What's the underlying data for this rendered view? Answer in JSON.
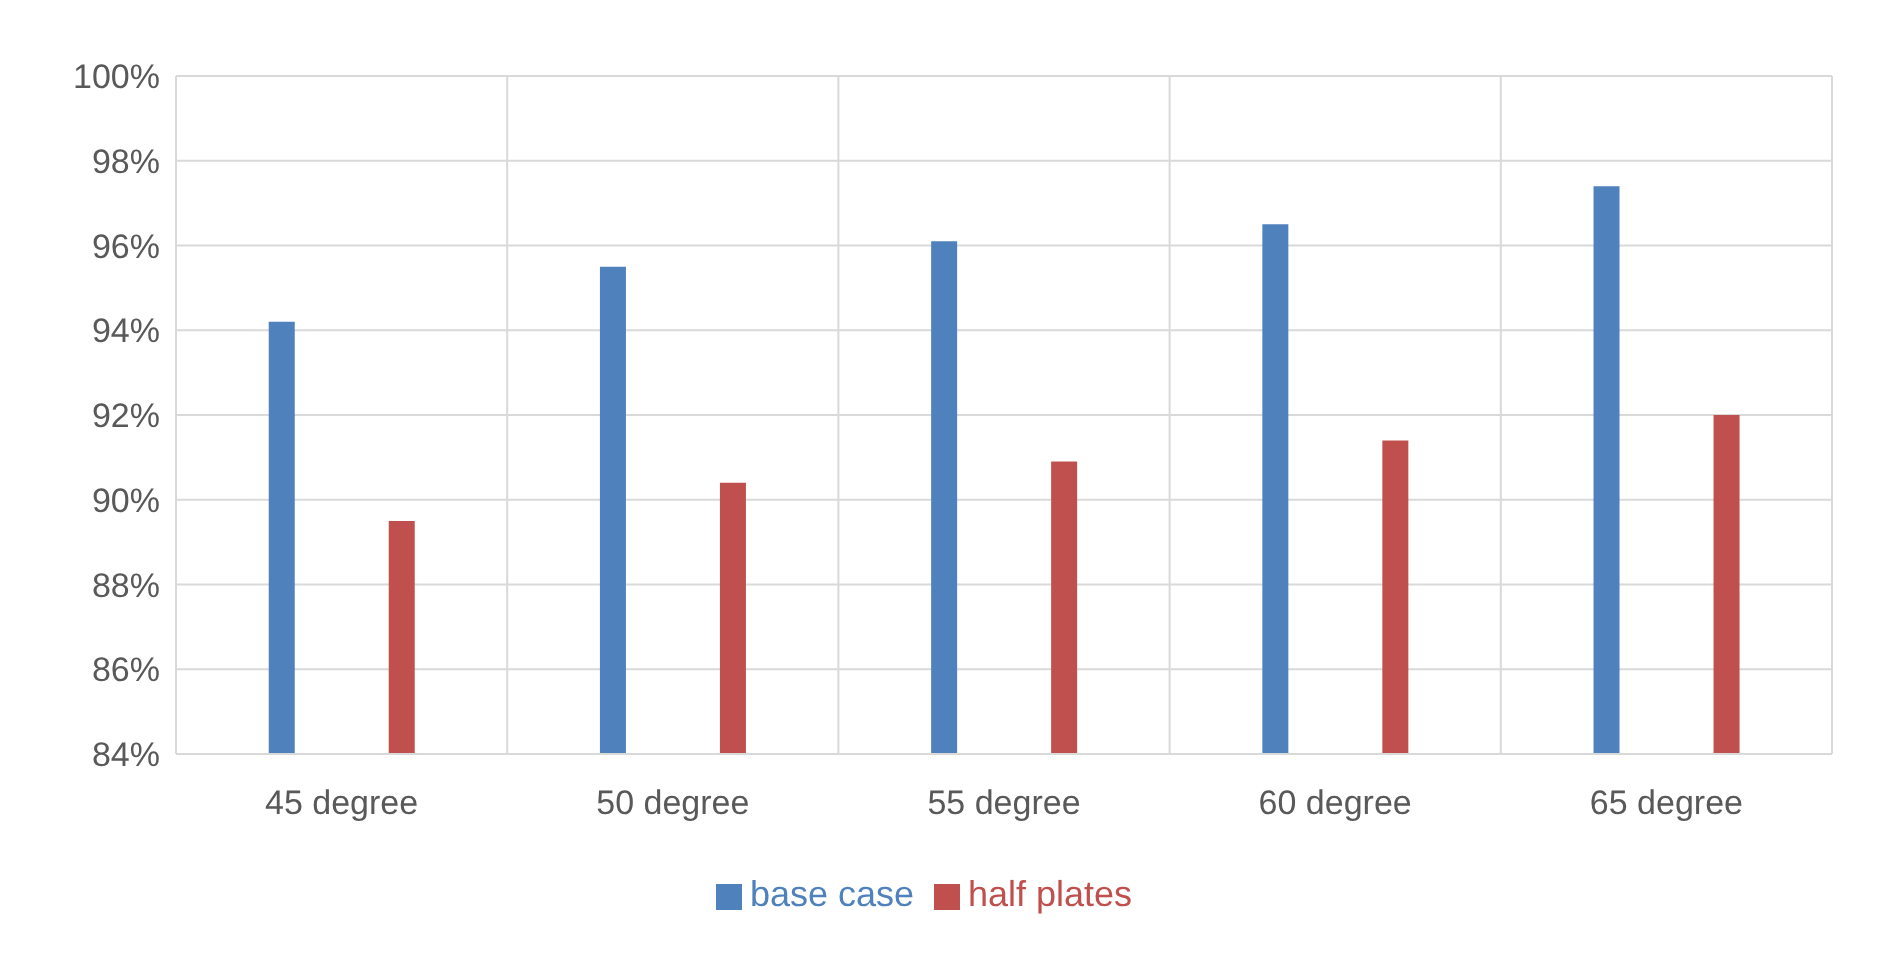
{
  "chart_data": {
    "type": "bar",
    "categories": [
      "45 degree",
      "50 degree",
      "55 degree",
      "60 degree",
      "65 degree"
    ],
    "series": [
      {
        "name": "base case",
        "color": "#4f81bd",
        "values": [
          94.2,
          95.5,
          96.1,
          96.5,
          97.4
        ]
      },
      {
        "name": "half plates",
        "color": "#c0504d",
        "values": [
          89.5,
          90.4,
          90.9,
          91.4,
          92.0
        ]
      }
    ],
    "ylim": [
      84,
      100
    ],
    "yticks": [
      {
        "value": 84,
        "label": "84%"
      },
      {
        "value": 86,
        "label": "86%"
      },
      {
        "value": 88,
        "label": "88%"
      },
      {
        "value": 90,
        "label": "90%"
      },
      {
        "value": 92,
        "label": "92%"
      },
      {
        "value": 94,
        "label": "94%"
      },
      {
        "value": 96,
        "label": "96%"
      },
      {
        "value": 98,
        "label": "98%"
      },
      {
        "value": 100,
        "label": "100%"
      }
    ],
    "grid": true,
    "legend": "bottom"
  }
}
